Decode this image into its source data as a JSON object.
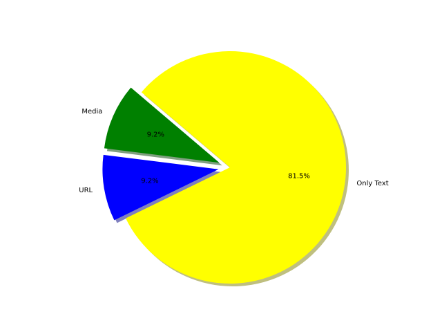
{
  "chart_data": {
    "type": "pie",
    "title": "",
    "slices": [
      {
        "label": "Only Text",
        "value": 81.5,
        "pct_label": "81.5%",
        "color": "#ffff00",
        "exploded": false
      },
      {
        "label": "Media",
        "value": 9.2,
        "pct_label": "9.2%",
        "color": "#008000",
        "exploded": true
      },
      {
        "label": "URL",
        "value": 9.2,
        "pct_label": "9.2%",
        "color": "#0000ff",
        "exploded": true
      }
    ],
    "shadow": true,
    "legend": "none"
  }
}
